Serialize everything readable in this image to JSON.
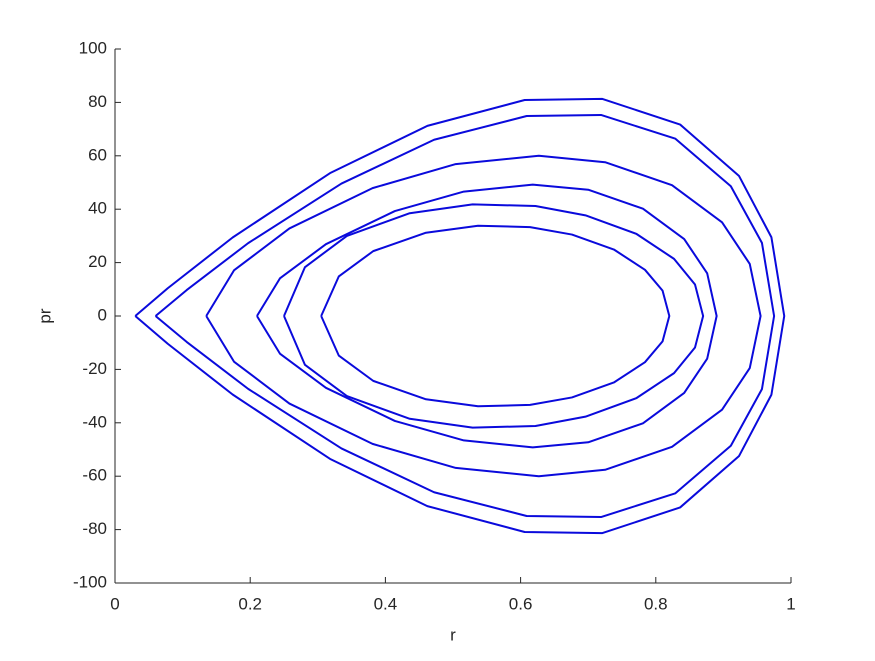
{
  "chart_data": {
    "type": "line",
    "x_label": "r",
    "y_label": "pr",
    "xlim": [
      0,
      1
    ],
    "ylim": [
      -100,
      100
    ],
    "xticks": [
      0,
      0.2,
      0.4,
      0.6,
      0.8,
      1
    ],
    "yticks": [
      -100,
      -80,
      -60,
      -40,
      -20,
      0,
      20,
      40,
      60,
      80,
      100
    ],
    "grid": false,
    "series": [
      {
        "color": "#0a0adc",
        "x": [
          0.305,
          0.331,
          0.382,
          0.46,
          0.537,
          0.614,
          0.676,
          0.738,
          0.784,
          0.81,
          0.82,
          0.81,
          0.784,
          0.738,
          0.676,
          0.614,
          0.537,
          0.46,
          0.382,
          0.331,
          0.305
        ],
        "y": [
          0,
          14.8,
          24.3,
          31.2,
          33.8,
          33.3,
          30.5,
          24.9,
          17.3,
          9.5,
          0,
          -9.5,
          -17.3,
          -24.9,
          -30.5,
          -33.3,
          -33.8,
          -31.2,
          -24.3,
          -14.8,
          0
        ]
      },
      {
        "color": "#0a0adc",
        "x": [
          0.25,
          0.281,
          0.343,
          0.436,
          0.529,
          0.622,
          0.696,
          0.771,
          0.827,
          0.858,
          0.87,
          0.858,
          0.827,
          0.771,
          0.696,
          0.622,
          0.529,
          0.436,
          0.343,
          0.281,
          0.25
        ],
        "y": [
          0,
          18.3,
          30.0,
          38.5,
          41.8,
          41.2,
          37.7,
          30.8,
          21.4,
          11.8,
          0,
          -11.8,
          -21.4,
          -30.8,
          -37.7,
          -41.2,
          -41.8,
          -38.5,
          -30.0,
          -18.3,
          0
        ]
      },
      {
        "color": "#0a0adc",
        "x": [
          0.21,
          0.244,
          0.312,
          0.414,
          0.516,
          0.618,
          0.7,
          0.781,
          0.842,
          0.876,
          0.89,
          0.876,
          0.842,
          0.781,
          0.7,
          0.618,
          0.516,
          0.414,
          0.312,
          0.244,
          0.21
        ],
        "y": [
          0,
          14.1,
          26.9,
          39.3,
          46.6,
          49.2,
          47.3,
          40.2,
          28.8,
          16.0,
          0,
          -16.0,
          -28.8,
          -40.2,
          -47.3,
          -49.2,
          -46.6,
          -39.3,
          -26.9,
          -14.1,
          0
        ]
      },
      {
        "color": "#0a0adc",
        "x": [
          0.135,
          0.176,
          0.258,
          0.381,
          0.504,
          0.627,
          0.725,
          0.824,
          0.898,
          0.939,
          0.955,
          0.939,
          0.898,
          0.824,
          0.725,
          0.627,
          0.504,
          0.381,
          0.258,
          0.176,
          0.135
        ],
        "y": [
          0,
          17.1,
          32.8,
          47.9,
          56.9,
          60.0,
          57.6,
          49.0,
          35.1,
          19.5,
          0,
          -19.5,
          -35.1,
          -49.0,
          -57.6,
          -60.0,
          -56.9,
          -47.9,
          -32.8,
          -17.1,
          0
        ]
      },
      {
        "color": "#0a0adc",
        "x": [
          0.06,
          0.106,
          0.197,
          0.335,
          0.472,
          0.609,
          0.719,
          0.829,
          0.911,
          0.957,
          0.975,
          0.957,
          0.911,
          0.829,
          0.719,
          0.609,
          0.472,
          0.335,
          0.197,
          0.106,
          0.06
        ],
        "y": [
          0,
          9.7,
          27.3,
          49.6,
          66.0,
          74.9,
          75.3,
          66.4,
          48.6,
          27.4,
          0,
          -27.4,
          -48.6,
          -66.4,
          -75.3,
          -74.9,
          -66.0,
          -49.6,
          -27.3,
          -9.7,
          0
        ]
      },
      {
        "color": "#0a0adc",
        "x": [
          0.03,
          0.078,
          0.174,
          0.318,
          0.462,
          0.606,
          0.721,
          0.836,
          0.923,
          0.971,
          0.99,
          0.971,
          0.923,
          0.836,
          0.721,
          0.606,
          0.462,
          0.318,
          0.174,
          0.078,
          0.03
        ],
        "y": [
          0,
          10.4,
          29.4,
          53.5,
          71.2,
          80.9,
          81.3,
          71.7,
          52.5,
          29.5,
          0,
          -29.5,
          -52.5,
          -71.7,
          -81.3,
          -80.9,
          -71.2,
          -53.5,
          -29.4,
          -10.4,
          0
        ]
      }
    ]
  }
}
